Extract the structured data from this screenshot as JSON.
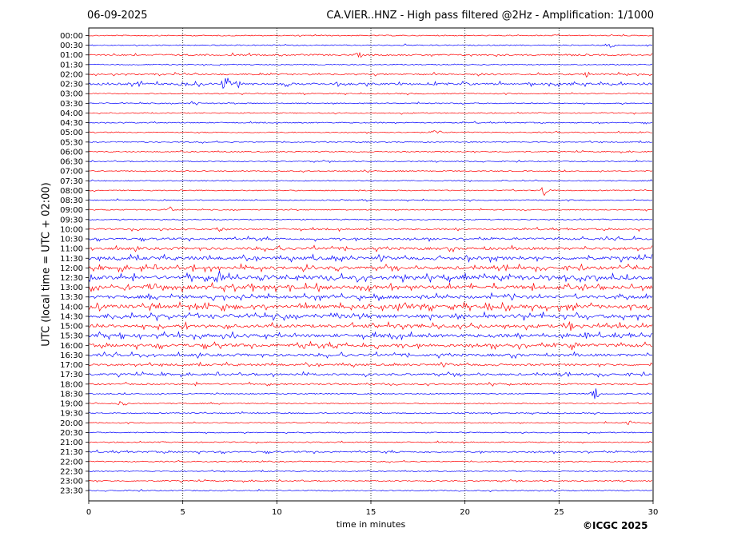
{
  "header": {
    "date": "06-09-2025",
    "title": "CA.VIER..HNZ - High pass filtered @2Hz - Amplification: 1/1000"
  },
  "footer": {
    "copyright": "©ICGC 2025"
  },
  "chart_data": {
    "type": "line",
    "xlabel": "time in minutes",
    "ylabel": "UTC (local time = UTC + 02:00)",
    "xlim": [
      0,
      30
    ],
    "xticks": [
      0,
      5,
      10,
      15,
      20,
      25,
      30
    ],
    "grid": "vertical dotted lines at each 5 minutes",
    "row_labels": [
      "00:00",
      "00:30",
      "01:00",
      "01:30",
      "02:00",
      "02:30",
      "03:00",
      "03:30",
      "04:00",
      "04:30",
      "05:00",
      "05:30",
      "06:00",
      "06:30",
      "07:00",
      "07:30",
      "08:00",
      "08:30",
      "09:00",
      "09:30",
      "10:00",
      "10:30",
      "11:00",
      "11:30",
      "12:00",
      "12:30",
      "13:00",
      "13:30",
      "14:00",
      "14:30",
      "15:00",
      "15:30",
      "16:00",
      "16:30",
      "17:00",
      "17:30",
      "18:00",
      "18:30",
      "19:00",
      "19:30",
      "20:00",
      "20:30",
      "21:00",
      "21:30",
      "22:00",
      "22:30",
      "23:00",
      "23:30"
    ],
    "trace_colors": [
      "#ff0000",
      "#0000ff"
    ],
    "noise_levels": [
      1,
      1,
      2,
      1,
      2,
      3,
      1,
      1,
      1,
      1,
      1,
      1,
      1,
      1,
      1,
      1,
      1,
      1,
      1,
      1,
      2,
      3,
      4,
      5,
      5,
      6,
      6,
      5,
      6,
      6,
      5,
      5,
      5,
      4,
      3,
      3,
      2,
      1,
      1,
      1,
      1,
      1,
      1,
      2,
      1,
      1,
      1,
      1
    ],
    "events": [
      {
        "row": 1,
        "x": 27.8,
        "amp": 3
      },
      {
        "row": 2,
        "x": 14.4,
        "amp": 3
      },
      {
        "row": 4,
        "x": 26.5,
        "amp": 4
      },
      {
        "row": 5,
        "x": 7.3,
        "amp": 10
      },
      {
        "row": 5,
        "x": 2.8,
        "amp": 4
      },
      {
        "row": 5,
        "x": 5.0,
        "amp": 4
      },
      {
        "row": 5,
        "x": 8.0,
        "amp": 5
      },
      {
        "row": 7,
        "x": 5.6,
        "amp": 3
      },
      {
        "row": 10,
        "x": 18.5,
        "amp": 3
      },
      {
        "row": 16,
        "x": 24.3,
        "amp": 9
      },
      {
        "row": 18,
        "x": 4.3,
        "amp": 4
      },
      {
        "row": 20,
        "x": 7.1,
        "amp": 4
      },
      {
        "row": 22,
        "x": 9.9,
        "amp": 6
      },
      {
        "row": 25,
        "x": 6.9,
        "amp": 10
      },
      {
        "row": 30,
        "x": 25.6,
        "amp": 6
      },
      {
        "row": 32,
        "x": 25.7,
        "amp": 7
      },
      {
        "row": 37,
        "x": 26.9,
        "amp": 8
      },
      {
        "row": 38,
        "x": 1.8,
        "amp": 4
      },
      {
        "row": 40,
        "x": 28.8,
        "amp": 3
      }
    ]
  }
}
